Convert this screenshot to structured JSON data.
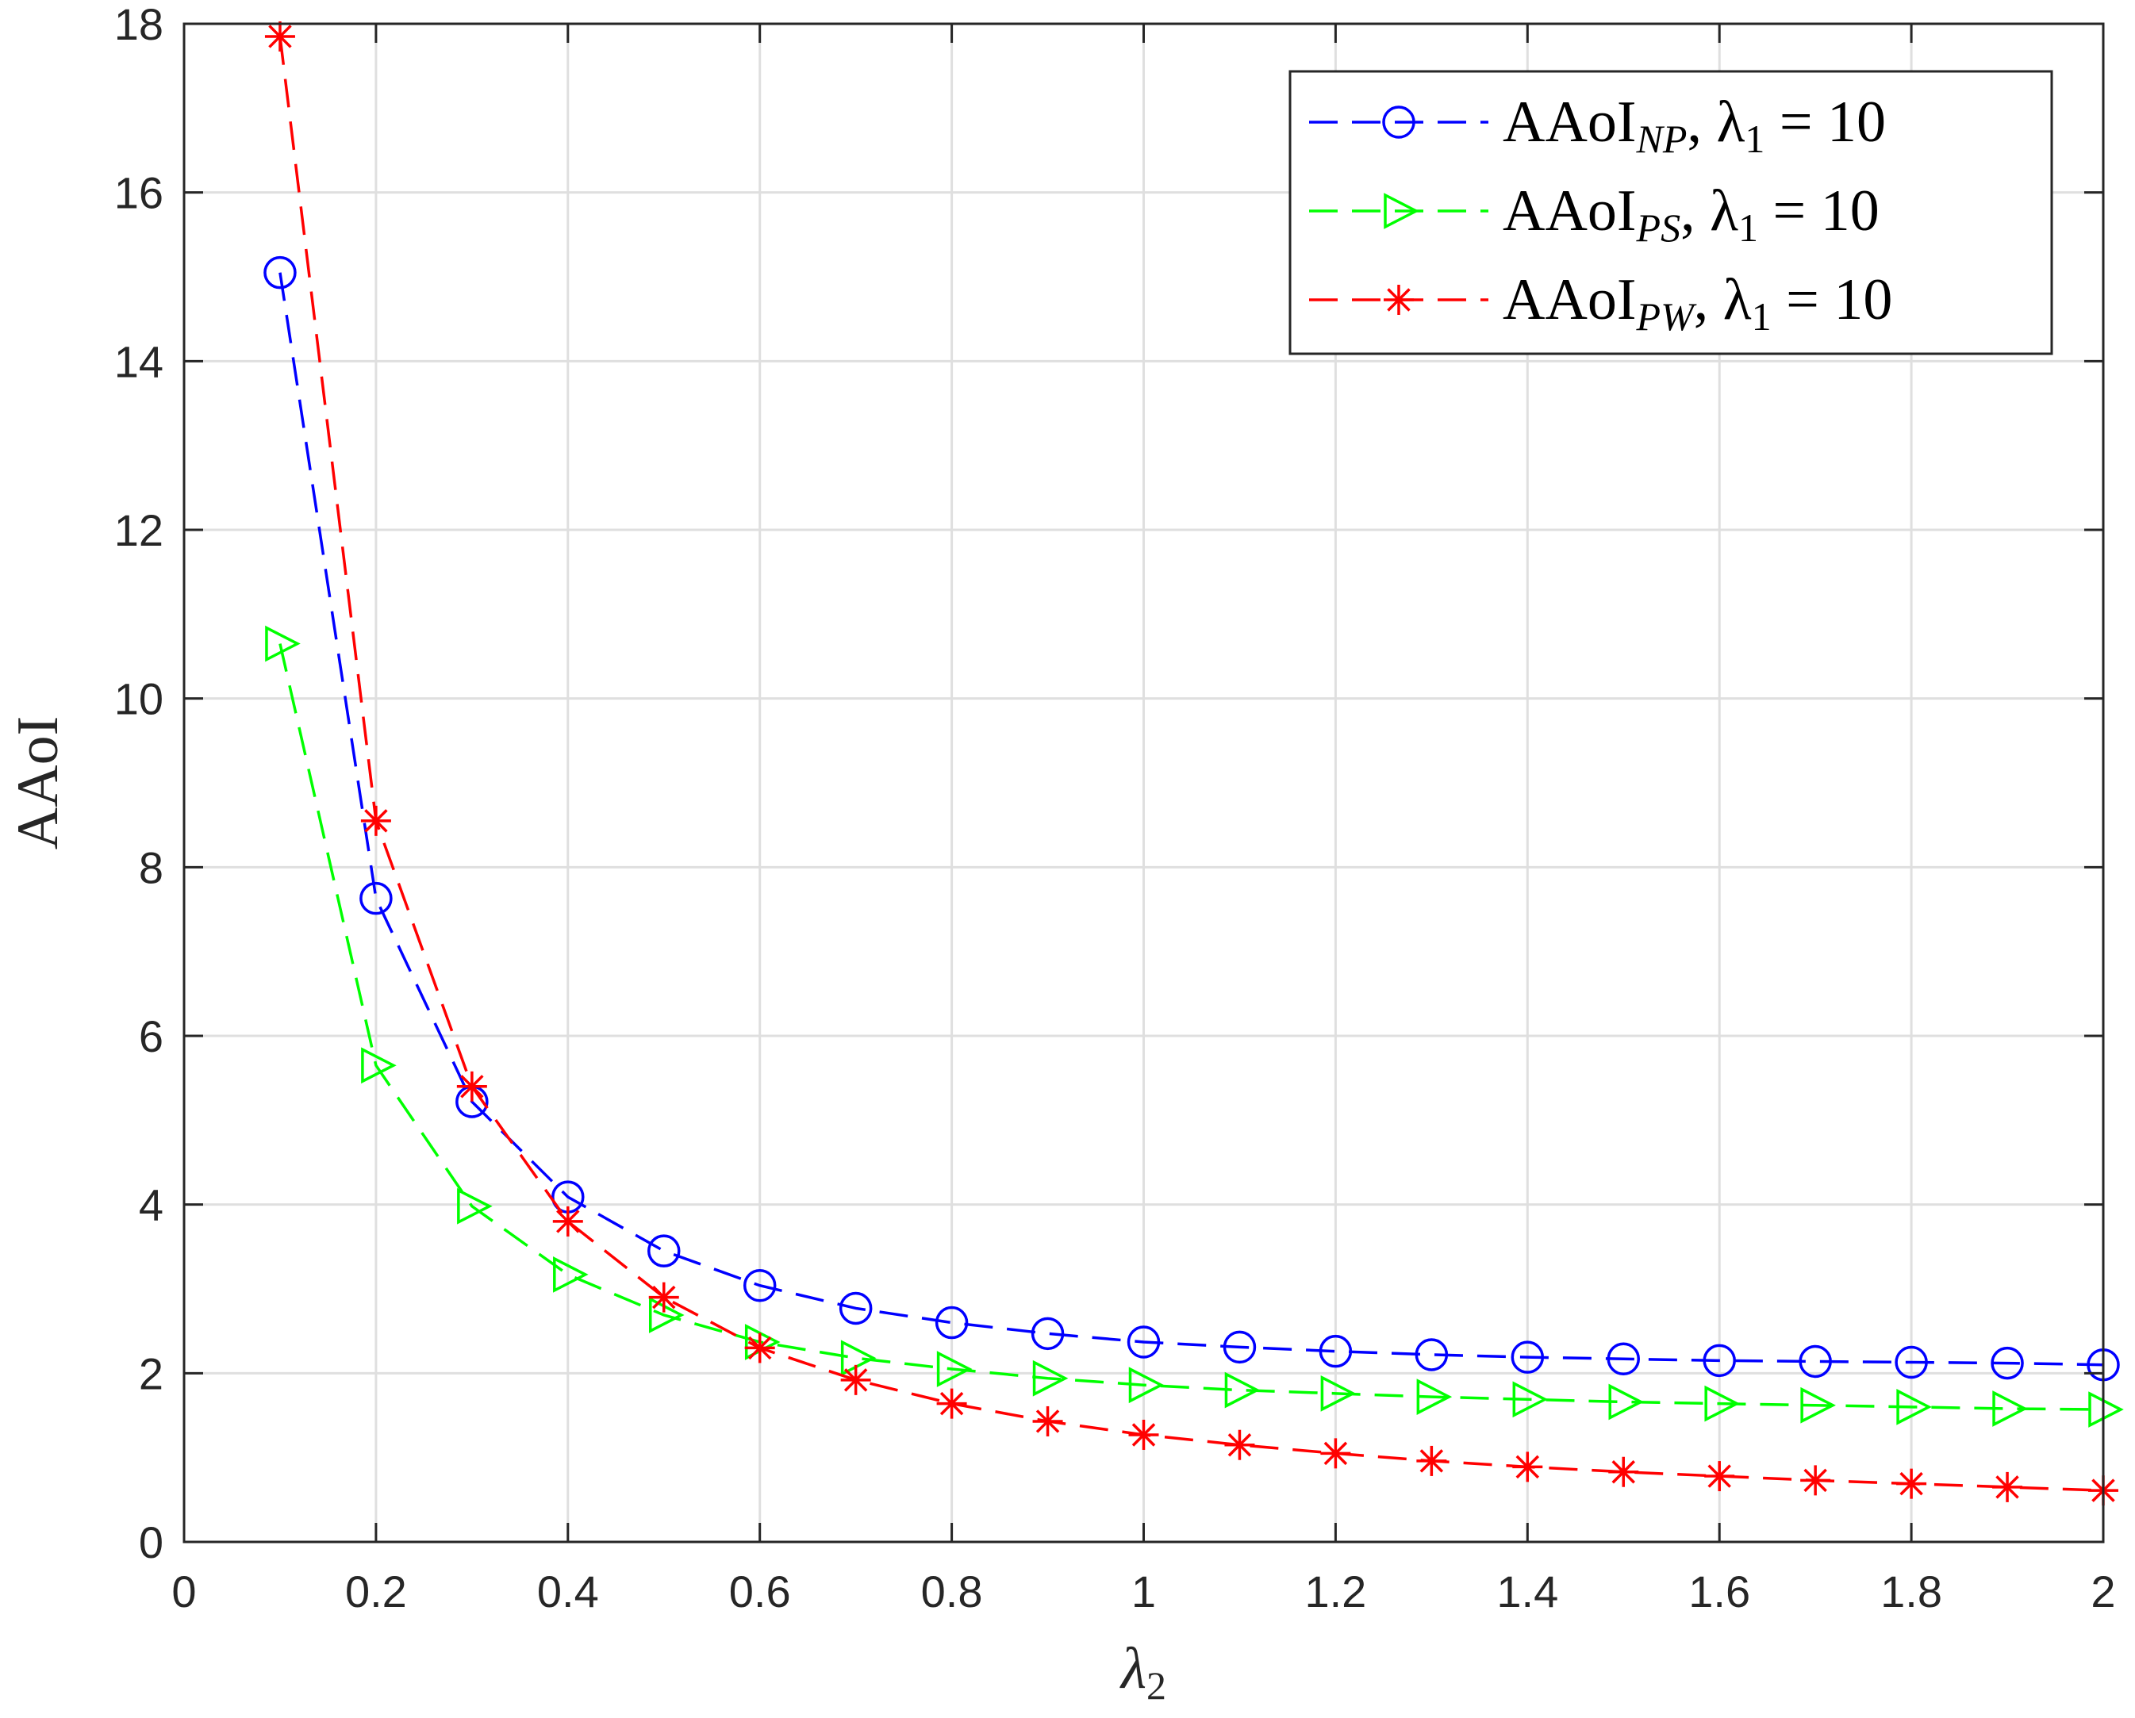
{
  "chart_data": {
    "type": "line",
    "xlabel": "λ",
    "xlabel_sub": "2",
    "ylabel": "AAoI",
    "xlim": [
      0,
      2
    ],
    "ylim": [
      0,
      18
    ],
    "xticks": [
      0,
      0.2,
      0.4,
      0.6,
      0.8,
      1,
      1.2,
      1.4,
      1.6,
      1.8,
      2
    ],
    "xtick_labels": [
      "0",
      "0.2",
      "0.4",
      "0.6",
      "0.8",
      "1",
      "1.2",
      "1.4",
      "1.6",
      "1.8",
      "2"
    ],
    "yticks": [
      0,
      2,
      4,
      6,
      8,
      10,
      12,
      14,
      16,
      18
    ],
    "ytick_labels": [
      "0",
      "2",
      "4",
      "6",
      "8",
      "10",
      "12",
      "14",
      "16",
      "18"
    ],
    "grid": true,
    "legend_position": "top-right",
    "x": [
      0.1,
      0.2,
      0.3,
      0.4,
      0.5,
      0.6,
      0.7,
      0.8,
      0.9,
      1.0,
      1.1,
      1.2,
      1.3,
      1.4,
      1.5,
      1.6,
      1.7,
      1.8,
      1.9,
      2.0
    ],
    "series": [
      {
        "name": "AAoI_NP, λ1 = 10",
        "legend_main": "AAoI",
        "legend_sub": "NP",
        "legend_tail": ", λ",
        "legend_tail_sub": "1",
        "legend_eq": " = 10",
        "color": "#0000ff",
        "marker": "circle",
        "values": [
          15.05,
          7.63,
          5.22,
          4.09,
          3.45,
          3.04,
          2.77,
          2.6,
          2.47,
          2.37,
          2.31,
          2.26,
          2.22,
          2.19,
          2.17,
          2.15,
          2.14,
          2.13,
          2.12,
          2.1
        ]
      },
      {
        "name": "AAoI_PS, λ1 = 10",
        "legend_main": "AAoI",
        "legend_sub": "PS",
        "legend_tail": ", λ",
        "legend_tail_sub": "1",
        "legend_eq": " = 10",
        "color": "#00ff00",
        "marker": "triangle-right",
        "values": [
          10.65,
          5.65,
          3.98,
          3.17,
          2.69,
          2.37,
          2.18,
          2.05,
          1.94,
          1.86,
          1.8,
          1.76,
          1.72,
          1.69,
          1.66,
          1.64,
          1.62,
          1.6,
          1.58,
          1.57
        ]
      },
      {
        "name": "AAoI_PW, λ1 = 10",
        "legend_main": "AAoI",
        "legend_sub": "PW",
        "legend_tail": ", λ",
        "legend_tail_sub": "1",
        "legend_eq": " = 10",
        "color": "#ff0000",
        "marker": "asterisk",
        "values": [
          17.85,
          8.55,
          5.4,
          3.8,
          2.9,
          2.3,
          1.92,
          1.64,
          1.43,
          1.27,
          1.15,
          1.05,
          0.96,
          0.89,
          0.83,
          0.78,
          0.73,
          0.69,
          0.65,
          0.61
        ]
      }
    ]
  }
}
